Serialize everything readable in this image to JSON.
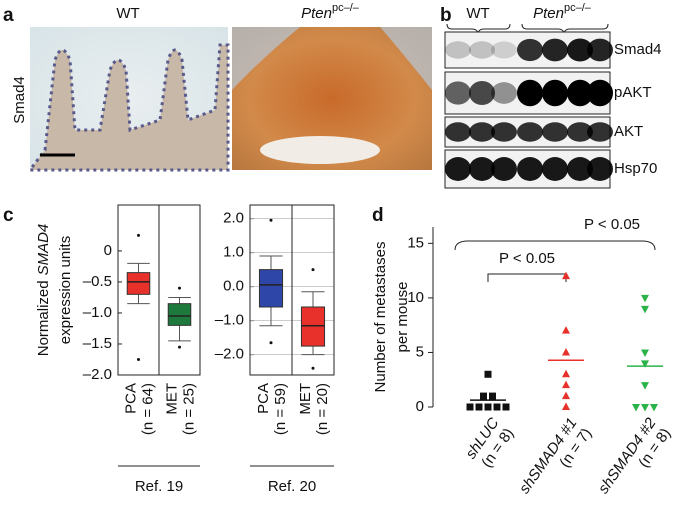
{
  "panel_labels": [
    "a",
    "b",
    "c",
    "d"
  ],
  "panel_a": {
    "row_label": "Smad4",
    "columns": [
      {
        "name": "WT"
      },
      {
        "name": "Pten",
        "superscript": "pc–/–"
      }
    ]
  },
  "panel_b": {
    "columns": [
      {
        "name": "WT"
      },
      {
        "name": "Pten",
        "superscript": "pc–/–"
      }
    ],
    "bands": [
      "Smad4",
      "pAKT",
      "AKT",
      "Hsp70"
    ]
  },
  "chart_data": [
    {
      "type": "box",
      "ylabel": [
        "Normalized",
        "SMAD4",
        "expression units"
      ],
      "categories": [
        "PCA",
        "MET"
      ],
      "n_labels": [
        "(n = 64)",
        "(n = 25)"
      ],
      "reference": "Ref. 19",
      "ylim": [
        -2.0,
        0.74
      ],
      "yticks": [
        {
          "value": -2.0,
          "label": "–2.0"
        },
        {
          "value": -1.5,
          "label": "–1.5"
        },
        {
          "value": -1.0,
          "label": "–1.0"
        },
        {
          "value": -0.5,
          "label": "–0.5"
        },
        0
      ],
      "grid": false,
      "boxes": [
        {
          "whislo": -0.85,
          "q1": -0.7,
          "med": -0.5,
          "q3": -0.35,
          "whishi": -0.2,
          "fliers": [
            0.25,
            -1.75
          ],
          "color": "#e8312a"
        },
        {
          "whislo": -1.45,
          "q1": -1.2,
          "med": -1.05,
          "q3": -0.85,
          "whishi": -0.75,
          "fliers": [
            -0.6,
            -1.55
          ],
          "color": "#1e7a3c"
        }
      ]
    },
    {
      "type": "box",
      "categories": [
        "PCA",
        "MET"
      ],
      "n_labels": [
        "(n = 59)",
        "(n = 20)"
      ],
      "reference": "Ref. 20",
      "ylim": [
        -2.6,
        2.4
      ],
      "yticks": [
        {
          "value": -2.0,
          "label": "–2.0"
        },
        {
          "value": -1.0,
          "label": "–1.0"
        },
        {
          "value": 0.0,
          "label": "0.0"
        },
        {
          "value": 1.0,
          "label": "1.0"
        },
        {
          "value": 2.0,
          "label": "2.0"
        }
      ],
      "grid": true,
      "boxes": [
        {
          "whislo": -1.15,
          "q1": -0.6,
          "med": 0.05,
          "q3": 0.5,
          "whishi": 0.9,
          "fliers": [
            1.95,
            -1.65
          ],
          "color": "#2e46a8"
        },
        {
          "whislo": -2.0,
          "q1": -1.75,
          "med": -1.15,
          "q3": -0.6,
          "whishi": -0.15,
          "fliers": [
            0.5,
            -2.4
          ],
          "color": "#e8312a"
        }
      ]
    },
    {
      "type": "dot",
      "ylabel": [
        "Number of metastases",
        "per mouse"
      ],
      "categories": [
        "shLUC",
        "shSMAD4 #1",
        "shSMAD4 #2"
      ],
      "n_labels": [
        "(n = 8)",
        "(n = 7)",
        "(n = 8)"
      ],
      "values": [
        [
          3,
          1,
          1,
          0,
          0,
          0,
          0,
          0
        ],
        [
          12,
          7,
          5,
          3,
          2,
          1,
          0
        ],
        [
          10,
          9,
          5,
          4,
          2,
          0,
          0,
          0
        ]
      ],
      "means": [
        0.625,
        4.29,
        3.75
      ],
      "colors": [
        "#111111",
        "#e8312a",
        "#2bb34a"
      ],
      "markers": [
        "square",
        "triangle-up",
        "triangle-down"
      ],
      "ylim": [
        0,
        16.5
      ],
      "yticks": [
        0,
        5,
        10,
        15
      ],
      "annotations": [
        "P < 0.05",
        "P < 0.05"
      ]
    }
  ]
}
